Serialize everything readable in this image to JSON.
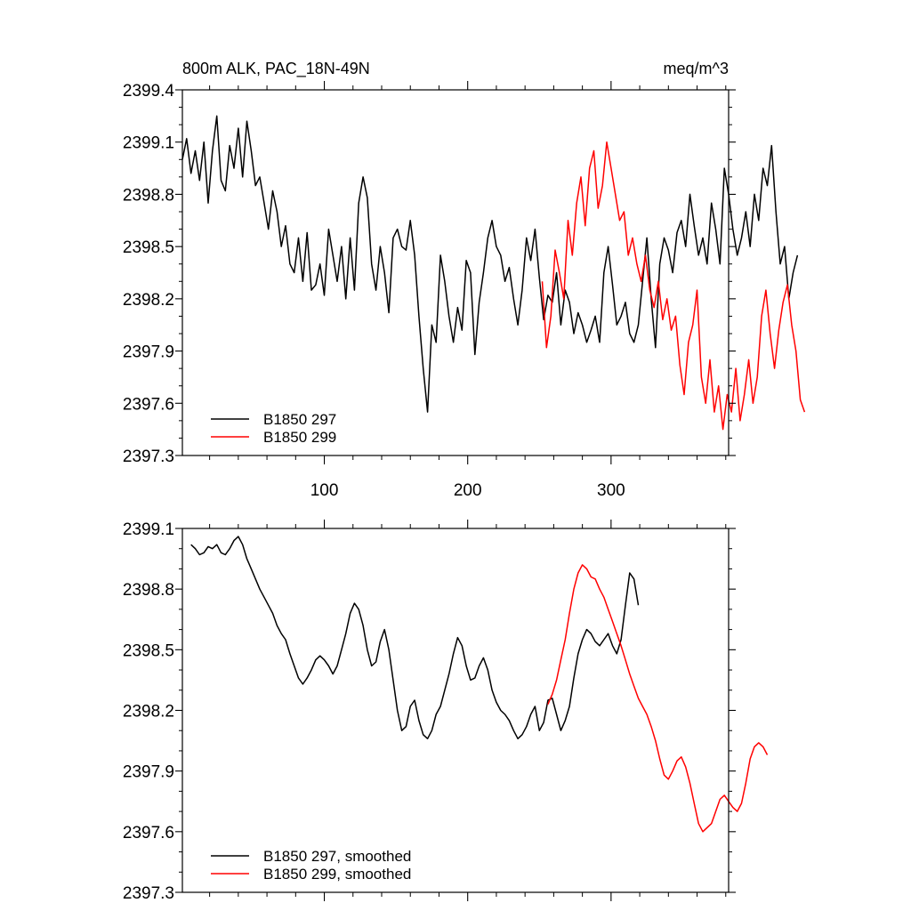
{
  "chart_data": [
    {
      "type": "line",
      "title": "800m ALK, PAC_18N-49N",
      "units": "meq/m^3",
      "xlim": [
        1,
        382
      ],
      "ylim": [
        2397.3,
        2399.4
      ],
      "x_ticks": [
        100,
        200,
        300
      ],
      "x_tick_labels": [
        "100",
        "200",
        "300"
      ],
      "y_ticks": [
        2397.3,
        2397.6,
        2397.9,
        2398.2,
        2398.5,
        2398.8,
        2399.1,
        2399.4
      ],
      "y_tick_labels": [
        "2397.3",
        "2397.6",
        "2397.9",
        "2398.2",
        "2398.5",
        "2398.8",
        "2399.1",
        "2399.4"
      ],
      "legend": {
        "placement": "bottom-left",
        "entries": [
          "B1850 297",
          "B1850 299"
        ]
      },
      "series": [
        {
          "name": "B1850 297",
          "color": "#000000",
          "x_start": 1,
          "x_step": 3,
          "values": [
            2399.0,
            2399.12,
            2398.92,
            2399.05,
            2398.88,
            2399.1,
            2398.75,
            2399.05,
            2399.25,
            2398.88,
            2398.82,
            2399.08,
            2398.95,
            2399.18,
            2398.9,
            2399.22,
            2399.05,
            2398.85,
            2398.9,
            2398.75,
            2398.6,
            2398.82,
            2398.7,
            2398.5,
            2398.62,
            2398.4,
            2398.35,
            2398.55,
            2398.3,
            2398.58,
            2398.25,
            2398.28,
            2398.4,
            2398.22,
            2398.6,
            2398.45,
            2398.3,
            2398.5,
            2398.2,
            2398.55,
            2398.25,
            2398.75,
            2398.9,
            2398.78,
            2398.4,
            2398.25,
            2398.5,
            2398.35,
            2398.12,
            2398.55,
            2398.6,
            2398.5,
            2398.48,
            2398.65,
            2398.45,
            2398.1,
            2397.8,
            2397.55,
            2398.05,
            2397.95,
            2398.45,
            2398.3,
            2398.1,
            2397.95,
            2398.15,
            2398.02,
            2398.42,
            2398.35,
            2397.88,
            2398.18,
            2398.35,
            2398.55,
            2398.65,
            2398.5,
            2398.45,
            2398.3,
            2398.38,
            2398.2,
            2398.05,
            2398.25,
            2398.55,
            2398.42,
            2398.6,
            2398.32,
            2398.08,
            2398.22,
            2398.18,
            2398.35,
            2398.05,
            2398.25,
            2398.18,
            2398.0,
            2398.12,
            2398.05,
            2397.95,
            2398.02,
            2398.1,
            2397.95,
            2398.35,
            2398.5,
            2398.28,
            2398.05,
            2398.1,
            2398.18,
            2398.0,
            2397.95,
            2398.05,
            2398.3,
            2398.55,
            2398.2,
            2397.92,
            2398.4,
            2398.55,
            2398.48,
            2398.35,
            2398.58,
            2398.65,
            2398.5,
            2398.8,
            2398.62,
            2398.45,
            2398.55,
            2398.4,
            2398.75,
            2398.6,
            2398.4,
            2398.95,
            2398.8,
            2398.6,
            2398.45,
            2398.55,
            2398.7,
            2398.5,
            2398.8,
            2398.65,
            2398.95,
            2398.85,
            2399.08,
            2398.7,
            2398.4,
            2398.5,
            2398.2,
            2398.35,
            2398.45
          ]
        },
        {
          "name": "B1850 299",
          "color": "#ff0000",
          "x_start": 252,
          "x_step": 3,
          "values": [
            2398.3,
            2397.92,
            2398.1,
            2398.48,
            2398.35,
            2398.2,
            2398.65,
            2398.45,
            2398.75,
            2398.9,
            2398.62,
            2398.95,
            2399.05,
            2398.72,
            2398.85,
            2399.1,
            2398.95,
            2398.8,
            2398.65,
            2398.7,
            2398.45,
            2398.55,
            2398.4,
            2398.3,
            2398.45,
            2398.25,
            2398.15,
            2398.3,
            2398.08,
            2398.2,
            2398.02,
            2398.1,
            2397.82,
            2397.65,
            2397.95,
            2398.05,
            2398.25,
            2397.75,
            2397.6,
            2397.85,
            2397.55,
            2397.7,
            2397.45,
            2397.65,
            2397.55,
            2397.8,
            2397.5,
            2397.65,
            2397.85,
            2397.6,
            2397.75,
            2398.1,
            2398.25,
            2398.0,
            2397.8,
            2398.02,
            2398.18,
            2398.28,
            2398.05,
            2397.9,
            2397.62,
            2397.55
          ]
        }
      ]
    },
    {
      "type": "line",
      "xlim": [
        1,
        382
      ],
      "ylim": [
        2397.3,
        2399.1
      ],
      "x_ticks": [
        100,
        200,
        300
      ],
      "y_ticks": [
        2397.3,
        2397.6,
        2397.9,
        2398.2,
        2398.5,
        2398.8,
        2399.1
      ],
      "y_tick_labels": [
        "2397.3",
        "2397.6",
        "2397.9",
        "2398.2",
        "2398.5",
        "2398.8",
        "2399.1"
      ],
      "legend": {
        "placement": "bottom-left",
        "entries": [
          "B1850 297, smoothed",
          "B1850 299, smoothed"
        ]
      },
      "series": [
        {
          "name": "B1850 297, smoothed",
          "color": "#000000",
          "x_start": 7,
          "x_step": 3,
          "values": [
            2399.02,
            2399.0,
            2398.97,
            2398.98,
            2399.01,
            2399.0,
            2399.02,
            2398.98,
            2398.97,
            2399.0,
            2399.04,
            2399.06,
            2399.02,
            2398.95,
            2398.9,
            2398.85,
            2398.8,
            2398.76,
            2398.72,
            2398.68,
            2398.62,
            2398.58,
            2398.55,
            2398.48,
            2398.42,
            2398.36,
            2398.33,
            2398.36,
            2398.4,
            2398.45,
            2398.47,
            2398.45,
            2398.42,
            2398.38,
            2398.42,
            2398.5,
            2398.58,
            2398.68,
            2398.73,
            2398.7,
            2398.62,
            2398.5,
            2398.42,
            2398.44,
            2398.54,
            2398.6,
            2398.5,
            2398.35,
            2398.2,
            2398.1,
            2398.12,
            2398.22,
            2398.25,
            2398.15,
            2398.08,
            2398.06,
            2398.1,
            2398.18,
            2398.22,
            2398.3,
            2398.38,
            2398.48,
            2398.56,
            2398.52,
            2398.42,
            2398.35,
            2398.36,
            2398.42,
            2398.46,
            2398.4,
            2398.3,
            2398.24,
            2398.2,
            2398.18,
            2398.15,
            2398.1,
            2398.06,
            2398.08,
            2398.12,
            2398.18,
            2398.22,
            2398.1,
            2398.14,
            2398.25,
            2398.26,
            2398.18,
            2398.1,
            2398.15,
            2398.22,
            2398.36,
            2398.48,
            2398.55,
            2398.6,
            2398.58,
            2398.54,
            2398.52,
            2398.55,
            2398.58,
            2398.52,
            2398.48,
            2398.55,
            2398.72,
            2398.88,
            2398.85,
            2398.72
          ]
        },
        {
          "name": "B1850 299, smoothed",
          "color": "#ff0000",
          "x_start": 256,
          "x_step": 3,
          "values": [
            2398.23,
            2398.28,
            2398.35,
            2398.45,
            2398.55,
            2398.68,
            2398.8,
            2398.88,
            2398.92,
            2398.9,
            2398.86,
            2398.85,
            2398.8,
            2398.76,
            2398.7,
            2398.64,
            2398.58,
            2398.52,
            2398.45,
            2398.38,
            2398.32,
            2398.26,
            2398.22,
            2398.18,
            2398.12,
            2398.05,
            2397.96,
            2397.88,
            2397.86,
            2397.9,
            2397.95,
            2397.97,
            2397.92,
            2397.84,
            2397.74,
            2397.64,
            2397.6,
            2397.62,
            2397.64,
            2397.7,
            2397.76,
            2397.78,
            2397.75,
            2397.72,
            2397.7,
            2397.74,
            2397.84,
            2397.96,
            2398.02,
            2398.04,
            2398.02,
            2397.98
          ]
        }
      ]
    }
  ]
}
